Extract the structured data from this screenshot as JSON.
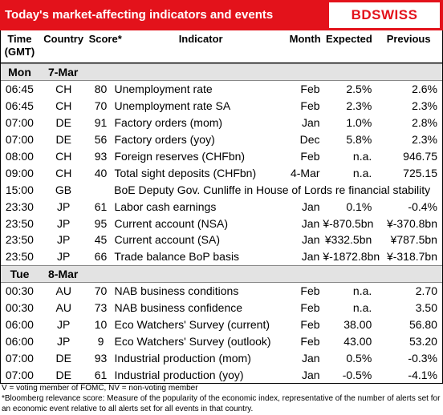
{
  "header": {
    "title": "Today's market-affecting indicators and events",
    "logo": "BDSWISS"
  },
  "table": {
    "columns": [
      "Time (GMT)",
      "Country",
      "Score*",
      "Indicator",
      "Month",
      "Expected",
      "Previous"
    ],
    "days": [
      {
        "day": "Mon",
        "date": "7-Mar",
        "rows": [
          [
            "06:45",
            "CH",
            "80",
            "Unemployment rate",
            "Feb",
            "2.5%",
            "2.6%"
          ],
          [
            "06:45",
            "CH",
            "70",
            "Unemployment rate SA",
            "Feb",
            "2.3%",
            "2.3%"
          ],
          [
            "07:00",
            "DE",
            "91",
            "Factory orders (mom)",
            "Jan",
            "1.0%",
            "2.8%"
          ],
          [
            "07:00",
            "DE",
            "56",
            "Factory orders (yoy)",
            "Dec",
            "5.8%",
            "2.3%"
          ],
          [
            "08:00",
            "CH",
            "93",
            "Foreign reserves (CHFbn)",
            "Feb",
            "n.a.",
            "946.75"
          ],
          [
            "09:00",
            "CH",
            "40",
            "Total sight deposits (CHFbn)",
            "4-Mar",
            "n.a.",
            "725.15"
          ],
          [
            "15:00",
            "GB",
            null,
            "BoE Deputy Gov. Cunliffe in House of Lords re financial stability",
            null,
            null,
            null
          ],
          [
            "23:30",
            "JP",
            "61",
            "Labor cash earnings",
            "Jan",
            "0.1%",
            "-0.4%"
          ],
          [
            "23:50",
            "JP",
            "95",
            "Current account  (NSA)",
            "Jan",
            "¥-870.5bn",
            "¥-370.8bn"
          ],
          [
            "23:50",
            "JP",
            "45",
            "Current account  (SA)",
            "Jan",
            "¥332.5bn",
            "¥787.5bn"
          ],
          [
            "23:50",
            "JP",
            "66",
            "Trade balance BoP basis",
            "Jan",
            "¥-1872.8bn",
            "¥-318.7bn"
          ]
        ]
      },
      {
        "day": "Tue",
        "date": "8-Mar",
        "rows": [
          [
            "00:30",
            "AU",
            "70",
            "NAB business conditions",
            "Feb",
            "n.a.",
            "2.70"
          ],
          [
            "00:30",
            "AU",
            "73",
            "NAB business confidence",
            "Feb",
            "n.a.",
            "3.50"
          ],
          [
            "06:00",
            "JP",
            "10",
            "Eco Watchers' Survey (current)",
            "Feb",
            "38.00",
            "56.80"
          ],
          [
            "06:00",
            "JP",
            "9",
            "Eco Watchers' Survey (outlook)",
            "Feb",
            "43.00",
            "53.20"
          ],
          [
            "07:00",
            "DE",
            "93",
            "Industrial production (mom)",
            "Jan",
            "0.5%",
            "-0.3%"
          ],
          [
            "07:00",
            "DE",
            "61",
            "Industrial production (yoy)",
            "Jan",
            "-0.5%",
            "-4.1%"
          ]
        ]
      }
    ]
  },
  "footnotes": [
    "V = voting member of FOMC, NV = non-voting member",
    "*Bloomberg relevance score:  Measure of the popularity of the economic index, representative of the number of alerts set for an economic event relative to all alerts set for all events in that country."
  ]
}
